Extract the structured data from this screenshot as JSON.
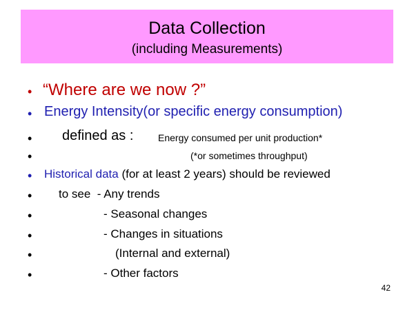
{
  "title": {
    "line1": "Data Collection",
    "line2": "(including Measurements)"
  },
  "bullets": {
    "b1": "“Where are we now ?”",
    "b2": "Energy Intensity(or specific energy consumption)",
    "b3_main": "defined as :",
    "b3_small": "Energy consumed per unit production*",
    "b4": "(*or sometimes throughput)",
    "b5_blue": "Historical data",
    "b5_rest": " (for at least 2 years) should be reviewed",
    "b6": "to see  - Any trends",
    "b7": "- Seasonal changes",
    "b8": "- Changes in situations",
    "b9": "(Internal and external)",
    "b10": "- Other factors"
  },
  "bullet_symbol": "•",
  "page_number": "42",
  "colors": {
    "title_bg": "#ff99ff",
    "red_text": "#c00000",
    "blue_text": "#1f1fb0"
  }
}
